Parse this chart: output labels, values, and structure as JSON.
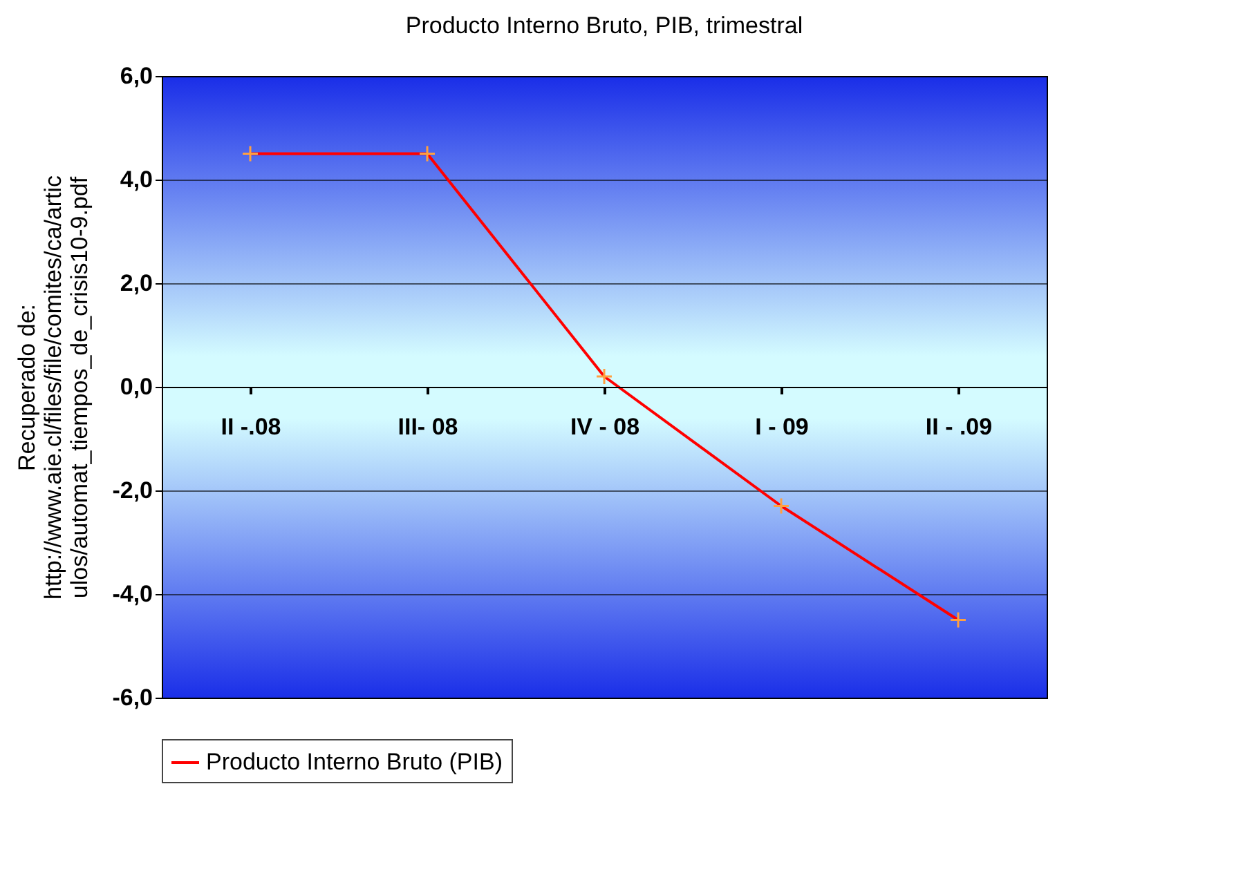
{
  "chart_data": {
    "type": "line",
    "title": "Producto Interno Bruto, PIB, trimestral",
    "ylabel": "Recuperado de:\nhttp://www.aie.cl/files/file/comites/ca/artic\nulos/automat_tiempos_de_crisis10-9.pdf",
    "categories": [
      "II -.08",
      "III- 08",
      "IV - 08",
      "I - 09",
      "II - .09"
    ],
    "series": [
      {
        "name": "Producto Interno Bruto (PIB)",
        "color": "#ff0000",
        "values": [
          4.5,
          4.5,
          0.2,
          -2.3,
          -4.5
        ]
      }
    ],
    "ylim": [
      -6,
      6
    ],
    "yticks": [
      {
        "value": -6,
        "label": "-6,0"
      },
      {
        "value": -4,
        "label": "-4,0"
      },
      {
        "value": -2,
        "label": "-2,0"
      },
      {
        "value": 0,
        "label": "0,0"
      },
      {
        "value": 2,
        "label": "2,0"
      },
      {
        "value": 4,
        "label": "4,0"
      },
      {
        "value": 6,
        "label": "6,0"
      }
    ],
    "grid": "y",
    "legend": "bottom",
    "marker": "cross",
    "line_style": "solid"
  }
}
